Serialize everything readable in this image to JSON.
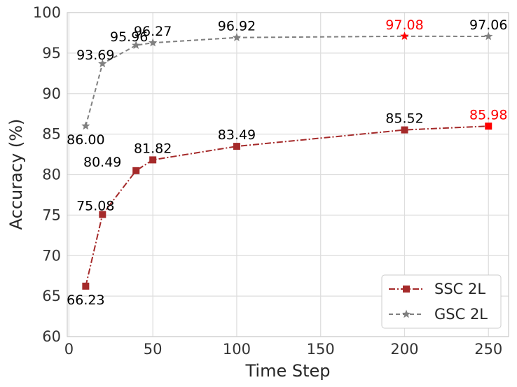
{
  "chart_data": {
    "type": "line",
    "xlabel": "Time Step",
    "ylabel": "Accuracy (%)",
    "xlim": [
      -1,
      262
    ],
    "ylim": [
      60,
      100
    ],
    "x_ticks": [
      0,
      50,
      100,
      150,
      200,
      250
    ],
    "y_ticks": [
      60,
      65,
      70,
      75,
      80,
      85,
      90,
      95,
      100
    ],
    "grid": true,
    "legend_position": "lower-right",
    "highlight_color": "#ff0000",
    "series": [
      {
        "name": "SSC 2L",
        "color": "#a52a2a",
        "line_style": "dash-dot",
        "marker": "square",
        "x": [
          10,
          20,
          40,
          50,
          100,
          200,
          250
        ],
        "y": [
          66.23,
          75.08,
          80.49,
          81.82,
          83.49,
          85.52,
          85.98
        ],
        "labels": [
          "66.23",
          "75.08",
          "80.49",
          "81.82",
          "83.49",
          "85.52",
          "85.98"
        ],
        "label_placement": [
          "below",
          "above-left",
          "left",
          "above",
          "above",
          "above",
          "above"
        ],
        "highlight_index": 6
      },
      {
        "name": "GSC 2L",
        "color": "#808080",
        "line_style": "dashed",
        "marker": "star",
        "x": [
          10,
          20,
          40,
          50,
          100,
          200,
          250
        ],
        "y": [
          86.0,
          93.69,
          95.96,
          96.27,
          96.92,
          97.08,
          97.06
        ],
        "labels": [
          "86.00",
          "93.69",
          "95.96",
          "96.27",
          "96.92",
          "97.08",
          "97.06"
        ],
        "label_placement": [
          "below",
          "above-left",
          "above-left",
          "above",
          "above",
          "above",
          "above"
        ],
        "highlight_index": 5
      }
    ]
  }
}
